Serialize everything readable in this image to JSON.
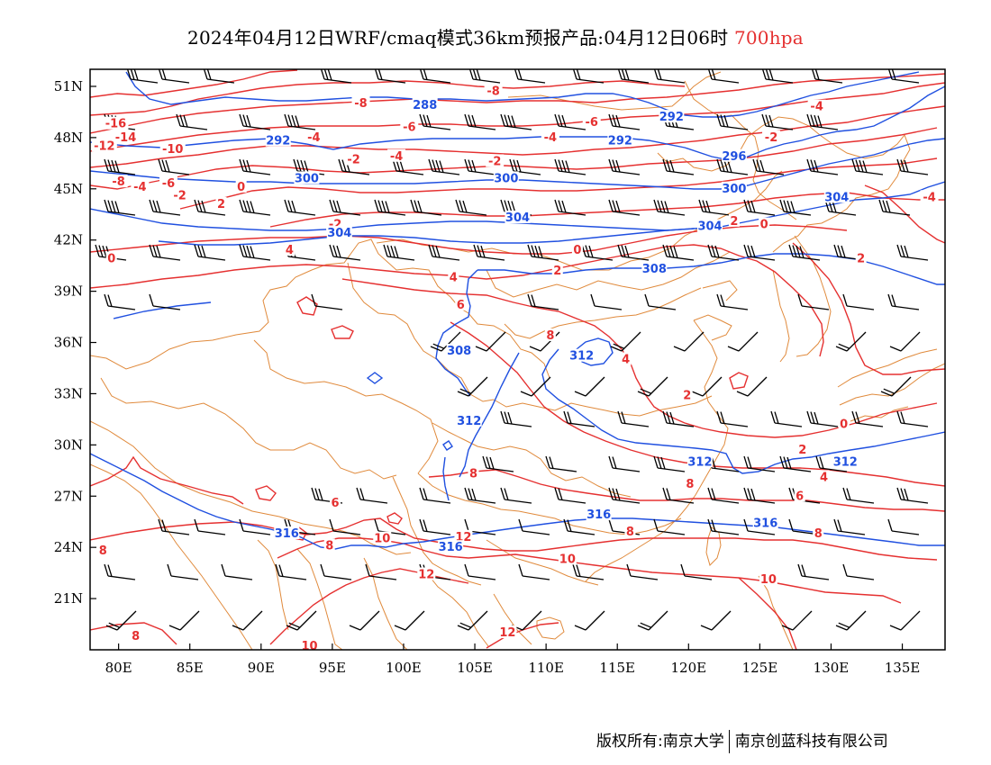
{
  "title": {
    "text": "2024年04月12日WRF/cmaq模式36km预报产品:04月12日06时",
    "level": "700hpa"
  },
  "map": {
    "lon_range": [
      78,
      138
    ],
    "lat_range": [
      18,
      52
    ],
    "x_ticks": [
      "80E",
      "85E",
      "90E",
      "95E",
      "100E",
      "105E",
      "110E",
      "115E",
      "120E",
      "125E",
      "130E",
      "135E"
    ],
    "y_ticks": [
      "51N",
      "48N",
      "45N",
      "42N",
      "39N",
      "36N",
      "33N",
      "30N",
      "27N",
      "24N",
      "21N"
    ],
    "colors": {
      "temperature_contours": "#e53030",
      "geopotential_contours": "#2050e0",
      "borders": "#e08a3c",
      "wind_barbs": "#000000"
    },
    "geopotential_labels": [
      {
        "text": "288",
        "lon": 101.5,
        "lat": 49.9
      },
      {
        "text": "292",
        "lon": 91.2,
        "lat": 47.8
      },
      {
        "text": "292",
        "lon": 115.2,
        "lat": 47.8
      },
      {
        "text": "292",
        "lon": 118.8,
        "lat": 49.2
      },
      {
        "text": "296",
        "lon": 123.2,
        "lat": 46.9
      },
      {
        "text": "300",
        "lon": 93.2,
        "lat": 45.6
      },
      {
        "text": "300",
        "lon": 107.2,
        "lat": 45.6
      },
      {
        "text": "300",
        "lon": 123.2,
        "lat": 45.0
      },
      {
        "text": "304",
        "lon": 95.5,
        "lat": 42.4
      },
      {
        "text": "304",
        "lon": 108.0,
        "lat": 43.3
      },
      {
        "text": "304",
        "lon": 130.4,
        "lat": 44.5
      },
      {
        "text": "304",
        "lon": 121.5,
        "lat": 42.8
      },
      {
        "text": "308",
        "lon": 117.6,
        "lat": 40.3
      },
      {
        "text": "308",
        "lon": 103.9,
        "lat": 35.5
      },
      {
        "text": "312",
        "lon": 112.5,
        "lat": 35.2
      },
      {
        "text": "312",
        "lon": 104.6,
        "lat": 31.4
      },
      {
        "text": "312",
        "lon": 120.8,
        "lat": 29.0
      },
      {
        "text": "312",
        "lon": 131.0,
        "lat": 29.0
      },
      {
        "text": "316",
        "lon": 91.8,
        "lat": 24.8
      },
      {
        "text": "316",
        "lon": 103.3,
        "lat": 24.0
      },
      {
        "text": "316",
        "lon": 113.7,
        "lat": 25.9
      },
      {
        "text": "316",
        "lon": 125.4,
        "lat": 25.4
      }
    ],
    "temperature_labels": [
      {
        "text": "-16",
        "lon": 79.8,
        "lat": 48.8
      },
      {
        "text": "-14",
        "lon": 80.5,
        "lat": 48.0
      },
      {
        "text": "-12",
        "lon": 79.0,
        "lat": 47.5
      },
      {
        "text": "-10",
        "lon": 83.8,
        "lat": 47.3
      },
      {
        "text": "-8",
        "lon": 80.0,
        "lat": 45.4
      },
      {
        "text": "-4",
        "lon": 81.5,
        "lat": 45.1
      },
      {
        "text": "-4",
        "lon": 93.7,
        "lat": 48.0
      },
      {
        "text": "-4",
        "lon": 99.5,
        "lat": 46.9
      },
      {
        "text": "-2",
        "lon": 96.5,
        "lat": 46.7
      },
      {
        "text": "-2",
        "lon": 84.3,
        "lat": 44.6
      },
      {
        "text": "-6",
        "lon": 83.5,
        "lat": 45.3
      },
      {
        "text": "-8",
        "lon": 97.0,
        "lat": 50.0
      },
      {
        "text": "-8",
        "lon": 106.3,
        "lat": 50.7
      },
      {
        "text": "-6",
        "lon": 100.4,
        "lat": 48.6
      },
      {
        "text": "-6",
        "lon": 113.2,
        "lat": 48.9
      },
      {
        "text": "-4",
        "lon": 110.3,
        "lat": 48.0
      },
      {
        "text": "-4",
        "lon": 129.0,
        "lat": 49.8
      },
      {
        "text": "-4",
        "lon": 136.9,
        "lat": 44.5
      },
      {
        "text": "-2",
        "lon": 106.4,
        "lat": 46.6
      },
      {
        "text": "-2",
        "lon": 125.8,
        "lat": 48.0
      },
      {
        "text": "0",
        "lon": 88.6,
        "lat": 45.1
      },
      {
        "text": "2",
        "lon": 87.2,
        "lat": 44.1
      },
      {
        "text": "2",
        "lon": 123.2,
        "lat": 43.1
      },
      {
        "text": "-2",
        "lon": 95.2,
        "lat": 42.9
      },
      {
        "text": "0",
        "lon": 125.3,
        "lat": 42.9
      },
      {
        "text": "0",
        "lon": 112.2,
        "lat": 41.4
      },
      {
        "text": "2",
        "lon": 110.8,
        "lat": 40.2
      },
      {
        "text": "4",
        "lon": 103.5,
        "lat": 39.8
      },
      {
        "text": "4",
        "lon": 92.0,
        "lat": 41.4
      },
      {
        "text": "0",
        "lon": 79.5,
        "lat": 40.9
      },
      {
        "text": "2",
        "lon": 132.1,
        "lat": 40.9
      },
      {
        "text": "6",
        "lon": 104.0,
        "lat": 38.2
      },
      {
        "text": "8",
        "lon": 110.3,
        "lat": 36.4
      },
      {
        "text": "4",
        "lon": 115.6,
        "lat": 35.0
      },
      {
        "text": "2",
        "lon": 119.9,
        "lat": 32.9
      },
      {
        "text": "0",
        "lon": 130.9,
        "lat": 31.2
      },
      {
        "text": "2",
        "lon": 128.0,
        "lat": 29.7
      },
      {
        "text": "4",
        "lon": 129.5,
        "lat": 28.1
      },
      {
        "text": "6",
        "lon": 127.8,
        "lat": 27.0
      },
      {
        "text": "8",
        "lon": 120.1,
        "lat": 27.7
      },
      {
        "text": "8",
        "lon": 104.9,
        "lat": 28.3
      },
      {
        "text": "6",
        "lon": 95.2,
        "lat": 26.6
      },
      {
        "text": "8",
        "lon": 94.8,
        "lat": 24.1
      },
      {
        "text": "10",
        "lon": 98.5,
        "lat": 24.5
      },
      {
        "text": "12",
        "lon": 104.2,
        "lat": 24.6
      },
      {
        "text": "8",
        "lon": 78.9,
        "lat": 23.8
      },
      {
        "text": "8",
        "lon": 115.9,
        "lat": 24.9
      },
      {
        "text": "8",
        "lon": 129.1,
        "lat": 24.8
      },
      {
        "text": "10",
        "lon": 111.5,
        "lat": 23.3
      },
      {
        "text": "12",
        "lon": 101.6,
        "lat": 22.4
      },
      {
        "text": "10",
        "lon": 125.6,
        "lat": 22.1
      },
      {
        "text": "12",
        "lon": 107.3,
        "lat": 19.0
      },
      {
        "text": "8",
        "lon": 81.2,
        "lat": 18.8
      },
      {
        "text": "10",
        "lon": 93.4,
        "lat": 18.2
      }
    ]
  },
  "footer": {
    "left": "版权所有:南京大学",
    "right": "南京创蓝科技有限公司"
  }
}
